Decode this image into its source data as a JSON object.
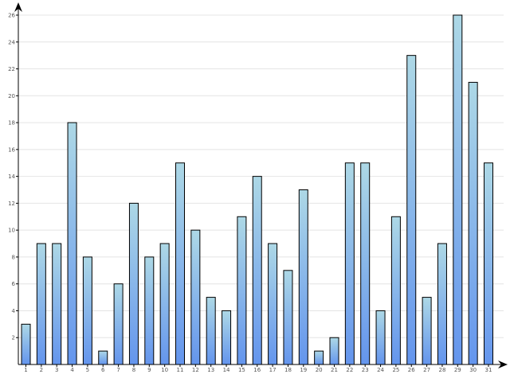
{
  "chart_data": {
    "type": "bar",
    "title": "",
    "xlabel": "",
    "ylabel": "",
    "categories": [
      "1",
      "2",
      "3",
      "4",
      "5",
      "6",
      "7",
      "8",
      "9",
      "10",
      "11",
      "12",
      "13",
      "14",
      "15",
      "16",
      "17",
      "18",
      "19",
      "20",
      "21",
      "22",
      "23",
      "24",
      "25",
      "26",
      "27",
      "28",
      "29",
      "30",
      "31"
    ],
    "values": [
      3,
      9,
      9,
      18,
      8,
      1,
      6,
      12,
      8,
      9,
      15,
      10,
      5,
      4,
      11,
      14,
      9,
      7,
      13,
      1,
      2,
      15,
      15,
      4,
      11,
      23,
      5,
      9,
      26,
      21,
      15
    ],
    "ylim": [
      0,
      26
    ],
    "y_ticks": [
      "2",
      "4",
      "6",
      "8",
      "10",
      "12",
      "14",
      "16",
      "18",
      "20",
      "22",
      "24",
      "26"
    ],
    "y_tick_values": [
      2,
      4,
      6,
      8,
      10,
      12,
      14,
      16,
      18,
      20,
      22,
      24,
      26
    ],
    "grid": true,
    "legend": "none",
    "colors": {
      "bar_top": "#add8e6",
      "bar_bottom": "#6495ed",
      "bar_outline": "#000000",
      "grid": "#e4e4e4"
    }
  }
}
